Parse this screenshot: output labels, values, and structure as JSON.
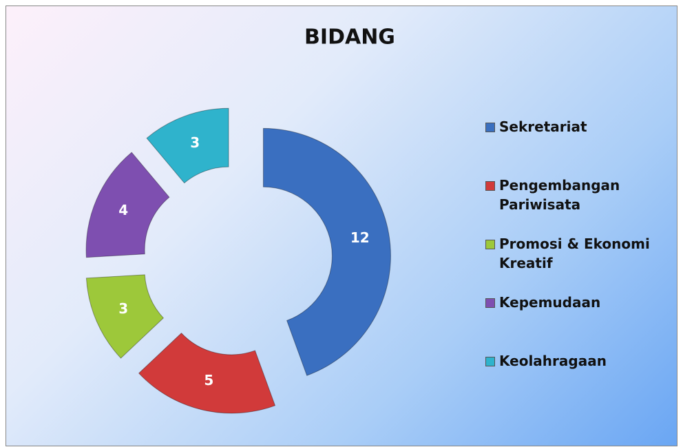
{
  "chart_data": {
    "type": "doughnut",
    "title": "BIDANG",
    "categories": [
      "Sekretariat",
      "Pengembangan Pariwisata",
      "Promosi & Ekonomi Kreatif",
      "Kepemudaan",
      "Keolahragaan"
    ],
    "values": [
      12,
      5,
      3,
      4,
      3
    ],
    "colors": [
      "#3a6fc0",
      "#d13a3a",
      "#9dc83a",
      "#7e4fb0",
      "#2fb3cc"
    ],
    "legend": "right"
  }
}
